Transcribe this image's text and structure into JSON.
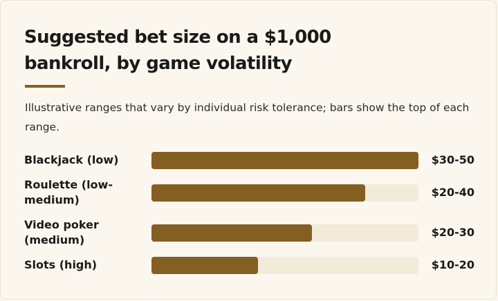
{
  "chart_data": {
    "type": "bar",
    "orientation": "horizontal",
    "title": "Suggested bet size on a $1,000 bankroll, by game volatility",
    "subtitle": "Illustrative ranges that vary by individual risk tolerance; bars show the top of each range.",
    "categories": [
      "Blackjack (low)",
      "Roulette (low-medium)",
      "Video poker (medium)",
      "Slots (high)"
    ],
    "range_labels": [
      "$30-50",
      "$20-40",
      "$20-30",
      "$10-20"
    ],
    "values": [
      50,
      40,
      30,
      20
    ],
    "xlim": [
      0,
      50
    ],
    "grid": false,
    "legend": "none",
    "colors": {
      "bar": "#845f22",
      "track": "#f2ebda",
      "accent": "#8a5c20",
      "background": "#fbf7ee"
    }
  }
}
